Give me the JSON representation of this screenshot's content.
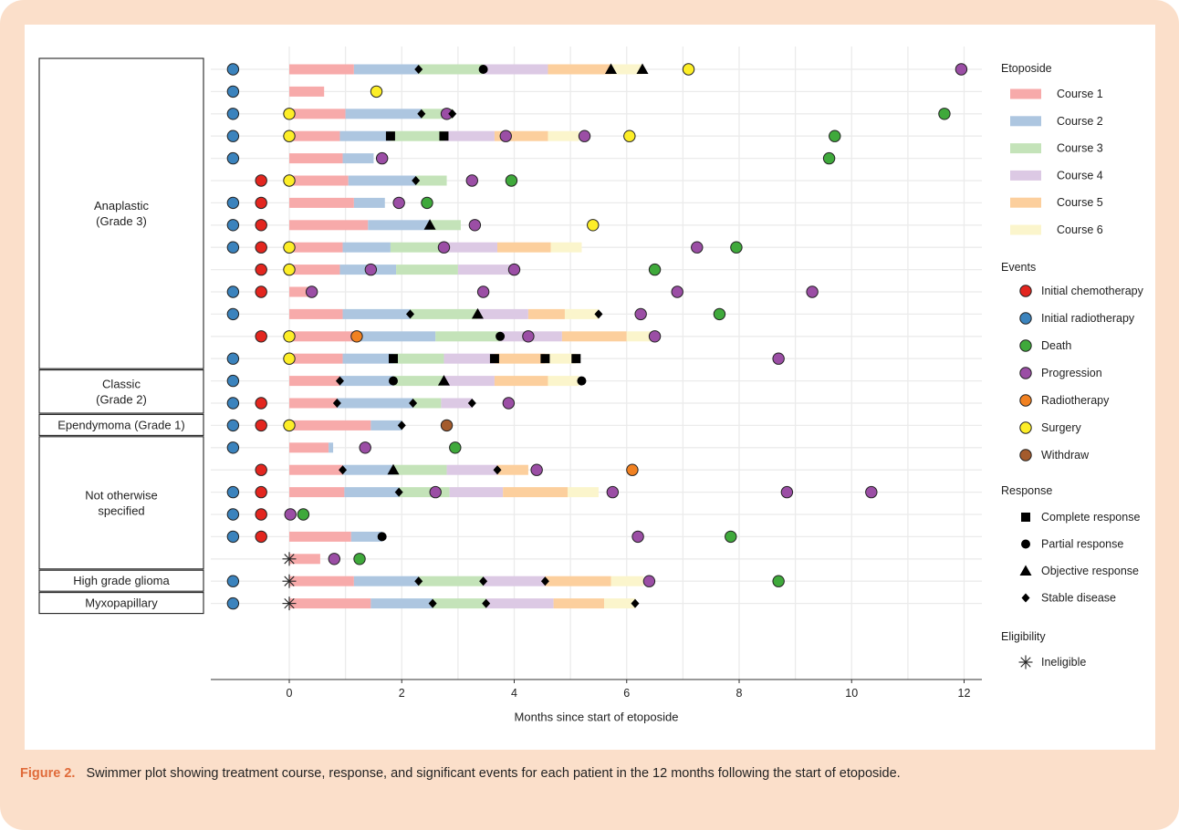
{
  "caption": {
    "label": "Figure 2.",
    "text": "Swimmer plot showing treatment course, response, and significant events for each patient in the 12 months following the start of etoposide."
  },
  "chart_data": {
    "type": "swimmer",
    "xlabel": "Months since start of etoposide",
    "xlim": [
      -1.6,
      12.3
    ],
    "xticks": [
      0,
      2,
      4,
      6,
      8,
      10,
      12
    ],
    "grid": true,
    "legend_position": "right",
    "groups": [
      {
        "label": "Anaplastic\n(Grade 3)",
        "rows": [
          0,
          13
        ]
      },
      {
        "label": "Classic\n(Grade 2)",
        "rows": [
          14,
          15
        ]
      },
      {
        "label": "Ependymoma (Grade 1)",
        "rows": [
          16,
          16
        ]
      },
      {
        "label": "Not otherwise\nspecified",
        "rows": [
          17,
          22
        ]
      },
      {
        "label": "High grade glioma",
        "rows": [
          23,
          23
        ]
      },
      {
        "label": "Myxopapillary",
        "rows": [
          24,
          24
        ]
      }
    ],
    "course_colors": [
      "#f7aaaa",
      "#adc6e0",
      "#c4e3b9",
      "#dcc9e4",
      "#fccf9d",
      "#fbf5cc"
    ],
    "event_colors": {
      "initial_chemotherapy": "#e3261f",
      "initial_radiotherapy": "#3b83bd",
      "death": "#3fa93b",
      "progression": "#9b4ea5",
      "radiotherapy": "#f18121",
      "surgery": "#fdee27",
      "withdraw": "#a45b2c"
    },
    "legend": {
      "etoposide": {
        "title": "Etoposide",
        "items": [
          "Course 1",
          "Course 2",
          "Course 3",
          "Course 4",
          "Course 5",
          "Course 6"
        ]
      },
      "events": {
        "title": "Events",
        "items": [
          {
            "key": "initial_chemotherapy",
            "label": "Initial chemotherapy"
          },
          {
            "key": "initial_radiotherapy",
            "label": "Initial radiotherapy"
          },
          {
            "key": "death",
            "label": "Death"
          },
          {
            "key": "progression",
            "label": "Progression"
          },
          {
            "key": "radiotherapy",
            "label": "Radiotherapy"
          },
          {
            "key": "surgery",
            "label": "Surgery"
          },
          {
            "key": "withdraw",
            "label": "Withdraw"
          }
        ]
      },
      "response": {
        "title": "Response",
        "items": [
          {
            "key": "complete",
            "label": "Complete response"
          },
          {
            "key": "partial",
            "label": "Partial response"
          },
          {
            "key": "objective",
            "label": "Objective response"
          },
          {
            "key": "stable",
            "label": "Stable disease"
          }
        ]
      },
      "eligibility": {
        "title": "Eligibility",
        "items": [
          {
            "key": "ineligible",
            "label": "Ineligible"
          }
        ]
      }
    },
    "patients": [
      {
        "courses": [
          1.15,
          2.3,
          3.45,
          4.6,
          5.72,
          6.28
        ],
        "initial_radiotherapy": true,
        "events": [
          {
            "t": 7.1,
            "type": "surgery"
          },
          {
            "t": 11.95,
            "type": "progression"
          }
        ],
        "responses": [
          {
            "t": 2.3,
            "type": "stable"
          },
          {
            "t": 3.45,
            "type": "partial"
          },
          {
            "t": 5.72,
            "type": "objective"
          },
          {
            "t": 6.28,
            "type": "objective"
          }
        ]
      },
      {
        "courses": [
          0.62
        ],
        "initial_radiotherapy": true,
        "events": [
          {
            "t": 1.55,
            "type": "surgery"
          }
        ],
        "responses": []
      },
      {
        "courses": [
          1.0,
          2.35,
          2.9
        ],
        "initial_radiotherapy": true,
        "events": [
          {
            "t": 0,
            "type": "surgery"
          },
          {
            "t": 2.8,
            "type": "progression"
          },
          {
            "t": 11.65,
            "type": "death"
          }
        ],
        "responses": [
          {
            "t": 2.35,
            "type": "stable"
          },
          {
            "t": 2.9,
            "type": "stable"
          }
        ]
      },
      {
        "courses": [
          0.9,
          1.8,
          2.75,
          3.65,
          4.6,
          5.15
        ],
        "initial_radiotherapy": true,
        "events": [
          {
            "t": 0,
            "type": "surgery"
          },
          {
            "t": 3.85,
            "type": "progression"
          },
          {
            "t": 5.25,
            "type": "progression"
          },
          {
            "t": 6.05,
            "type": "surgery"
          },
          {
            "t": 9.7,
            "type": "death"
          }
        ],
        "responses": [
          {
            "t": 1.8,
            "type": "complete"
          },
          {
            "t": 2.75,
            "type": "complete"
          }
        ]
      },
      {
        "courses": [
          0.95,
          1.5
        ],
        "initial_radiotherapy": true,
        "events": [
          {
            "t": 1.65,
            "type": "progression"
          },
          {
            "t": 9.6,
            "type": "death"
          }
        ],
        "responses": []
      },
      {
        "courses": [
          1.05,
          2.25,
          2.8
        ],
        "initial_chemotherapy": true,
        "events": [
          {
            "t": 0,
            "type": "surgery"
          },
          {
            "t": 3.25,
            "type": "progression"
          },
          {
            "t": 3.95,
            "type": "death"
          }
        ],
        "responses": [
          {
            "t": 2.25,
            "type": "stable"
          }
        ]
      },
      {
        "courses": [
          1.15,
          1.7
        ],
        "initial_radiotherapy": true,
        "initial_chemotherapy": true,
        "events": [
          {
            "t": 1.95,
            "type": "progression"
          },
          {
            "t": 2.45,
            "type": "death"
          }
        ],
        "responses": []
      },
      {
        "courses": [
          1.4,
          2.5,
          3.05
        ],
        "initial_radiotherapy": true,
        "initial_chemotherapy": true,
        "events": [
          {
            "t": 3.3,
            "type": "progression"
          },
          {
            "t": 5.4,
            "type": "surgery"
          }
        ],
        "responses": [
          {
            "t": 2.5,
            "type": "objective"
          }
        ]
      },
      {
        "courses": [
          0.95,
          1.8,
          2.75,
          3.7,
          4.65,
          5.2
        ],
        "initial_radiotherapy": true,
        "initial_chemotherapy": true,
        "events": [
          {
            "t": 0,
            "type": "surgery"
          },
          {
            "t": 2.75,
            "type": "progression"
          },
          {
            "t": 7.25,
            "type": "progression"
          },
          {
            "t": 7.95,
            "type": "death"
          }
        ],
        "responses": []
      },
      {
        "courses": [
          0.9,
          1.9,
          3.0,
          4.0
        ],
        "initial_chemotherapy": true,
        "events": [
          {
            "t": 0,
            "type": "surgery"
          },
          {
            "t": 1.45,
            "type": "progression"
          },
          {
            "t": 4.0,
            "type": "progression"
          },
          {
            "t": 6.5,
            "type": "death"
          }
        ],
        "responses": []
      },
      {
        "courses": [
          0.35
        ],
        "initial_radiotherapy": true,
        "initial_chemotherapy": true,
        "events": [
          {
            "t": 0.4,
            "type": "progression"
          },
          {
            "t": 3.45,
            "type": "progression"
          },
          {
            "t": 6.9,
            "type": "progression"
          },
          {
            "t": 9.3,
            "type": "progression"
          }
        ],
        "responses": []
      },
      {
        "courses": [
          0.95,
          2.15,
          3.35,
          4.25,
          4.9,
          5.5
        ],
        "initial_radiotherapy": true,
        "events": [
          {
            "t": 6.25,
            "type": "progression"
          },
          {
            "t": 7.65,
            "type": "death"
          }
        ],
        "responses": [
          {
            "t": 2.15,
            "type": "stable"
          },
          {
            "t": 3.35,
            "type": "objective"
          },
          {
            "t": 5.5,
            "type": "stable"
          }
        ]
      },
      {
        "courses": [
          1.15,
          2.6,
          3.75,
          4.85,
          6.0,
          6.45
        ],
        "initial_chemotherapy": true,
        "events": [
          {
            "t": 0,
            "type": "surgery"
          },
          {
            "t": 1.2,
            "type": "radiotherapy"
          },
          {
            "t": 4.25,
            "type": "progression"
          },
          {
            "t": 6.5,
            "type": "progression"
          }
        ],
        "responses": [
          {
            "t": 3.75,
            "type": "partial"
          }
        ]
      },
      {
        "courses": [
          0.95,
          1.85,
          2.75,
          3.65,
          4.55,
          5.1
        ],
        "initial_radiotherapy": true,
        "events": [
          {
            "t": 0,
            "type": "surgery"
          },
          {
            "t": 8.7,
            "type": "progression"
          }
        ],
        "responses": [
          {
            "t": 1.85,
            "type": "complete"
          },
          {
            "t": 3.65,
            "type": "complete"
          },
          {
            "t": 4.55,
            "type": "complete"
          },
          {
            "t": 5.1,
            "type": "complete"
          }
        ]
      },
      {
        "courses": [
          0.9,
          1.85,
          2.75,
          3.65,
          4.6,
          5.15
        ],
        "initial_radiotherapy": true,
        "events": [],
        "responses": [
          {
            "t": 0.9,
            "type": "stable"
          },
          {
            "t": 1.85,
            "type": "partial"
          },
          {
            "t": 2.75,
            "type": "objective"
          },
          {
            "t": 5.2,
            "type": "partial"
          }
        ]
      },
      {
        "courses": [
          0.85,
          2.2,
          2.7,
          3.25
        ],
        "initial_radiotherapy": true,
        "initial_chemotherapy": true,
        "events": [
          {
            "t": 3.9,
            "type": "progression"
          }
        ],
        "responses": [
          {
            "t": 0.85,
            "type": "stable"
          },
          {
            "t": 2.2,
            "type": "stable"
          },
          {
            "t": 3.25,
            "type": "stable"
          }
        ]
      },
      {
        "courses": [
          1.45,
          2.0
        ],
        "initial_radiotherapy": true,
        "initial_chemotherapy": true,
        "events": [
          {
            "t": 0,
            "type": "surgery"
          },
          {
            "t": 2.8,
            "type": "withdraw"
          }
        ],
        "responses": [
          {
            "t": 2.0,
            "type": "stable"
          }
        ]
      },
      {
        "courses": [
          0.7,
          0.78
        ],
        "initial_radiotherapy": true,
        "events": [
          {
            "t": 1.35,
            "type": "progression"
          },
          {
            "t": 2.95,
            "type": "death"
          }
        ],
        "responses": []
      },
      {
        "courses": [
          0.95,
          1.85,
          2.8,
          3.7,
          4.25
        ],
        "initial_chemotherapy": true,
        "events": [
          {
            "t": 4.4,
            "type": "progression"
          },
          {
            "t": 6.1,
            "type": "radiotherapy"
          }
        ],
        "responses": [
          {
            "t": 0.95,
            "type": "stable"
          },
          {
            "t": 1.85,
            "type": "objective"
          },
          {
            "t": 3.7,
            "type": "stable"
          }
        ]
      },
      {
        "courses": [
          0.98,
          1.95,
          2.85,
          3.8,
          4.95,
          5.5
        ],
        "initial_radiotherapy": true,
        "initial_chemotherapy": true,
        "events": [
          {
            "t": 2.6,
            "type": "progression"
          },
          {
            "t": 5.75,
            "type": "progression"
          },
          {
            "t": 8.85,
            "type": "progression"
          },
          {
            "t": 10.35,
            "type": "progression"
          }
        ],
        "responses": [
          {
            "t": 1.95,
            "type": "stable"
          }
        ]
      },
      {
        "courses": [],
        "initial_radiotherapy": true,
        "initial_chemotherapy": true,
        "events": [
          {
            "t": 0.02,
            "type": "progression"
          },
          {
            "t": 0.25,
            "type": "death"
          }
        ],
        "responses": []
      },
      {
        "courses": [
          1.1,
          1.65
        ],
        "initial_radiotherapy": true,
        "initial_chemotherapy": true,
        "events": [
          {
            "t": 6.2,
            "type": "progression"
          },
          {
            "t": 7.85,
            "type": "death"
          }
        ],
        "responses": [
          {
            "t": 1.65,
            "type": "partial"
          }
        ]
      },
      {
        "courses": [
          0.55
        ],
        "ineligible": true,
        "events": [
          {
            "t": 0.8,
            "type": "progression"
          },
          {
            "t": 1.25,
            "type": "death"
          }
        ],
        "responses": []
      },
      {
        "courses": [
          1.15,
          2.3,
          3.45,
          4.55,
          5.72,
          6.3
        ],
        "initial_radiotherapy": true,
        "ineligible": true,
        "events": [
          {
            "t": 6.4,
            "type": "progression"
          },
          {
            "t": 8.7,
            "type": "death"
          }
        ],
        "responses": [
          {
            "t": 2.3,
            "type": "stable"
          },
          {
            "t": 3.45,
            "type": "stable"
          },
          {
            "t": 4.55,
            "type": "stable"
          }
        ]
      },
      {
        "courses": [
          1.45,
          2.55,
          3.5,
          4.7,
          5.6,
          6.15
        ],
        "initial_radiotherapy": true,
        "ineligible": true,
        "events": [],
        "responses": [
          {
            "t": 2.55,
            "type": "stable"
          },
          {
            "t": 3.5,
            "type": "stable"
          },
          {
            "t": 6.15,
            "type": "stable"
          }
        ]
      }
    ]
  }
}
